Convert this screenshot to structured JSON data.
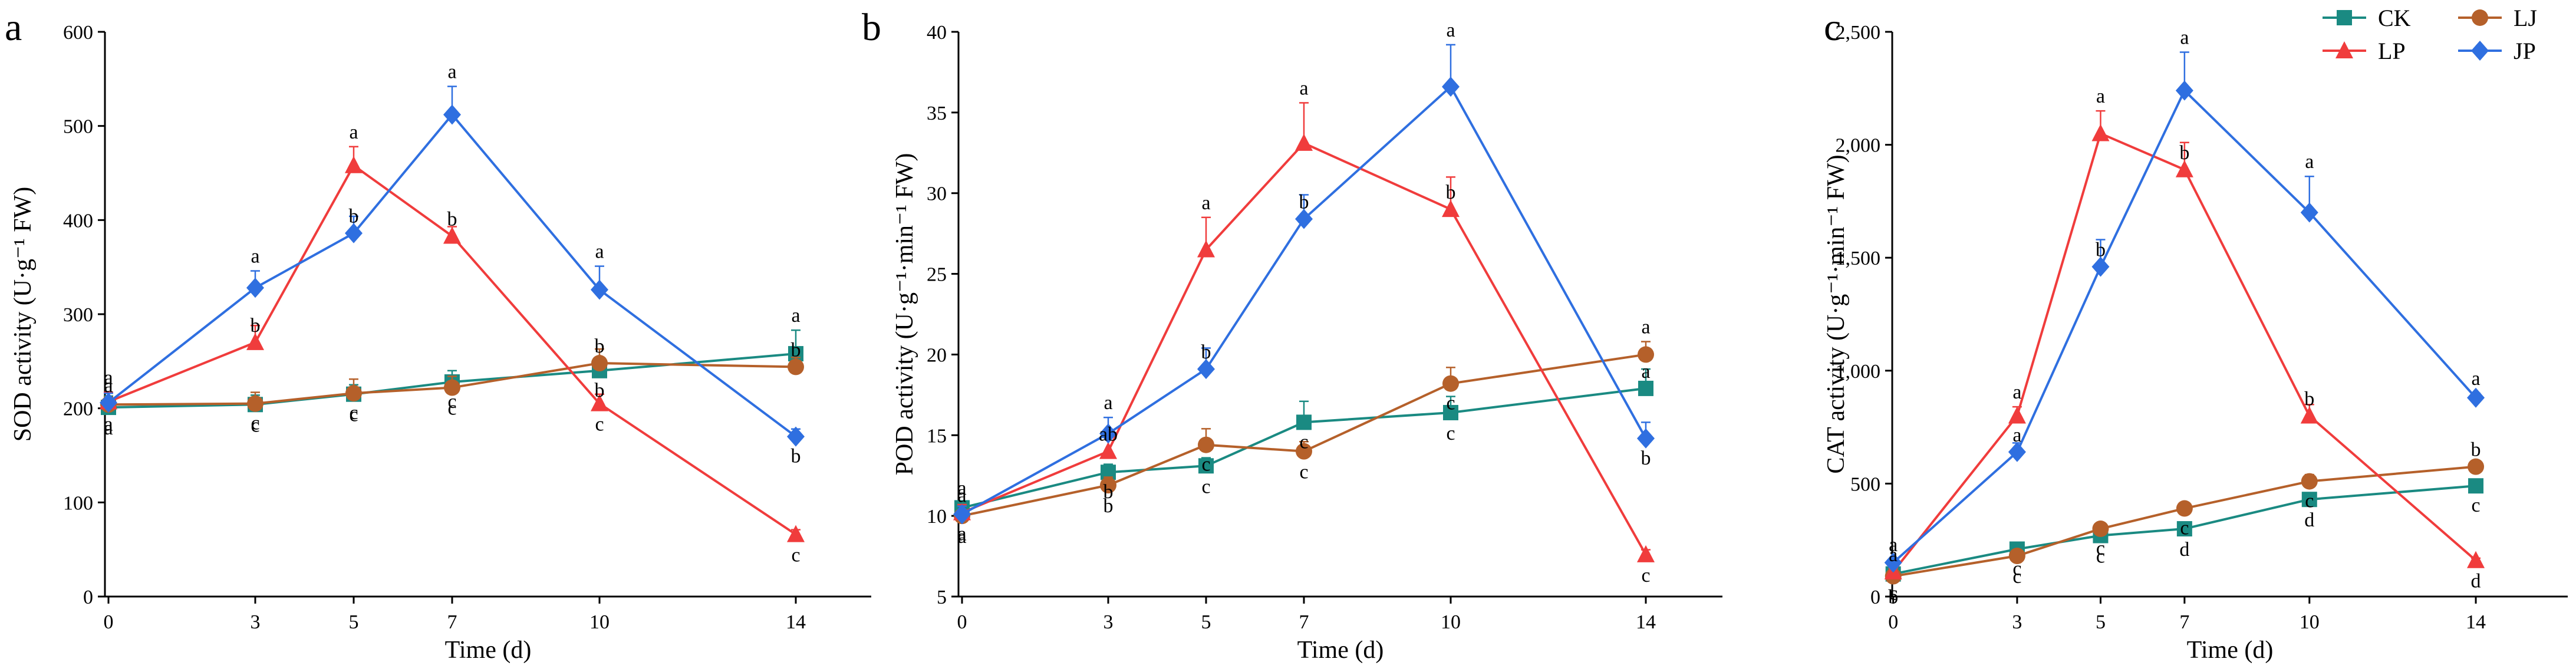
{
  "legend": {
    "entries": [
      {
        "key": "CK",
        "label": "CK",
        "color": "#1a8a82",
        "marker": "square"
      },
      {
        "key": "LJ",
        "label": "LJ",
        "color": "#b5602a",
        "marker": "circle"
      },
      {
        "key": "LP",
        "label": "LP",
        "color": "#f03c3c",
        "marker": "triangle"
      },
      {
        "key": "JP",
        "label": "JP",
        "color": "#2f6fe0",
        "marker": "diamond"
      }
    ]
  },
  "chart_data": [
    {
      "panel_letter": "a",
      "type": "line",
      "xlabel": "Time (d)",
      "ylabel": "SOD activity (U·g⁻¹ FW)",
      "ylim": [
        0,
        600
      ],
      "yticks": [
        0,
        100,
        200,
        300,
        400,
        500,
        600
      ],
      "ytick_labels": [
        "0",
        "100",
        "200",
        "300",
        "400",
        "500",
        "600"
      ],
      "categories": [
        "0",
        "3",
        "5",
        "7",
        "10",
        "14"
      ],
      "series": [
        {
          "name": "CK",
          "values": [
            201,
            204,
            215,
            228,
            240,
            258
          ],
          "errors": [
            12,
            10,
            10,
            12,
            12,
            25
          ],
          "letters": [
            "a",
            "c",
            "c",
            "c",
            "b",
            "a"
          ]
        },
        {
          "name": "LJ",
          "values": [
            204,
            205,
            216,
            222,
            248,
            244
          ],
          "errors": [
            8,
            12,
            15,
            12,
            15,
            10
          ],
          "letters": [
            "a",
            "c",
            "c",
            "c",
            "b",
            "b"
          ]
        },
        {
          "name": "LP",
          "values": [
            207,
            270,
            458,
            383,
            205,
            66
          ],
          "errors": [
            10,
            18,
            20,
            10,
            10,
            5
          ],
          "letters": [
            "a",
            "b",
            "a",
            "b",
            "c",
            "c"
          ]
        },
        {
          "name": "JP",
          "values": [
            206,
            328,
            386,
            512,
            326,
            170
          ],
          "errors": [
            10,
            18,
            18,
            30,
            25,
            8
          ],
          "letters": [
            "a",
            "a",
            "b",
            "a",
            "a",
            "b"
          ]
        }
      ]
    },
    {
      "panel_letter": "b",
      "type": "line",
      "xlabel": "Time (d)",
      "ylabel": "POD activity (U·g⁻¹·min⁻¹ FW)",
      "ylim": [
        5,
        40
      ],
      "yticks": [
        5,
        10,
        15,
        20,
        25,
        30,
        35,
        40
      ],
      "ytick_labels": [
        "5",
        "10",
        "15",
        "20",
        "25",
        "30",
        "35",
        "40"
      ],
      "categories": [
        "0",
        "3",
        "5",
        "7",
        "10",
        "14"
      ],
      "series": [
        {
          "name": "CK",
          "values": [
            10.5,
            12.7,
            13.1,
            15.8,
            16.4,
            17.9
          ],
          "errors": [
            0.3,
            0.5,
            0.5,
            1.3,
            1.0,
            1.2
          ],
          "letters": [
            "a",
            "b",
            "c",
            "c",
            "c",
            "a"
          ]
        },
        {
          "name": "LJ",
          "values": [
            10.0,
            11.9,
            14.4,
            14.0,
            18.2,
            20.0
          ],
          "errors": [
            0.3,
            0.5,
            1.0,
            0.6,
            1.0,
            0.8
          ],
          "letters": [
            "a",
            "b",
            "c",
            "c",
            "c",
            "a"
          ]
        },
        {
          "name": "LP",
          "values": [
            10.2,
            14.0,
            26.5,
            33.1,
            29.0,
            7.6
          ],
          "errors": [
            0.5,
            1.0,
            2.0,
            2.5,
            2.0,
            0.3
          ],
          "letters": [
            "a",
            "ab",
            "a",
            "a",
            "b",
            "c"
          ]
        },
        {
          "name": "JP",
          "values": [
            10.1,
            15.1,
            19.1,
            28.4,
            36.6,
            14.8
          ],
          "errors": [
            0.5,
            1.0,
            1.3,
            1.5,
            2.6,
            1.0
          ],
          "letters": [
            "a",
            "a",
            "b",
            "b",
            "a",
            "b"
          ]
        }
      ]
    },
    {
      "panel_letter": "c",
      "type": "line",
      "xlabel": "Time (d)",
      "ylabel": "CAT activity (U·g⁻¹·min⁻¹ FW)",
      "ylim": [
        0,
        2500
      ],
      "yticks": [
        0,
        500,
        1000,
        1500,
        2000,
        2500
      ],
      "ytick_labels": [
        "0",
        "500",
        "1,000",
        "1,500",
        "2,000",
        "2,500"
      ],
      "categories": [
        "0",
        "3",
        "5",
        "7",
        "10",
        "14"
      ],
      "series": [
        {
          "name": "CK",
          "values": [
            100,
            210,
            270,
            300,
            430,
            490
          ],
          "errors": [
            10,
            15,
            20,
            20,
            30,
            25
          ],
          "letters": [
            "c",
            "c",
            "c",
            "d",
            "d",
            "c"
          ]
        },
        {
          "name": "LJ",
          "values": [
            90,
            180,
            300,
            390,
            510,
            575
          ],
          "errors": [
            10,
            15,
            20,
            20,
            30,
            25
          ],
          "letters": [
            "b",
            "c",
            "c",
            "c",
            "c",
            "b"
          ]
        },
        {
          "name": "LP",
          "values": [
            110,
            800,
            2050,
            1890,
            800,
            160
          ],
          "errors": [
            15,
            40,
            100,
            120,
            50,
            10
          ],
          "letters": [
            "a",
            "a",
            "a",
            "b",
            "b",
            "d"
          ]
        },
        {
          "name": "JP",
          "values": [
            150,
            640,
            1460,
            2240,
            1700,
            880
          ],
          "errors": [
            15,
            40,
            120,
            170,
            160,
            20
          ],
          "letters": [
            "a",
            "a",
            "b",
            "a",
            "a",
            "a"
          ]
        }
      ]
    }
  ]
}
